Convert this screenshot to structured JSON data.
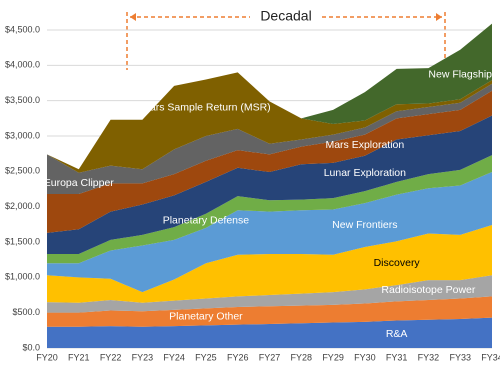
{
  "chart_data": {
    "type": "stacked_area",
    "annotation": "Decadal",
    "categories": [
      "FY20",
      "FY21",
      "FY22",
      "FY23",
      "FY24",
      "FY25",
      "FY26",
      "FY27",
      "FY28",
      "FY29",
      "FY30",
      "FY31",
      "FY32",
      "FY33",
      "FY34"
    ],
    "ylim": [
      0,
      4500
    ],
    "yticks": [
      {
        "value": 0,
        "label": "$0.0"
      },
      {
        "value": 500,
        "label": "$500.0"
      },
      {
        "value": 1000,
        "label": "$1,000.0"
      },
      {
        "value": 1500,
        "label": "$1,500.0"
      },
      {
        "value": 2000,
        "label": "$2,000.0"
      },
      {
        "value": 2500,
        "label": "$2,500.0"
      },
      {
        "value": 3000,
        "label": "$3,000.0"
      },
      {
        "value": 3500,
        "label": "$3,500.0"
      },
      {
        "value": 4000,
        "label": "$4,000.0"
      },
      {
        "value": 4500,
        "label": "$4,500.0"
      }
    ],
    "grid": true,
    "series": [
      {
        "name": "R&A",
        "color": "#4472c4",
        "values": [
          300,
          300,
          310,
          300,
          310,
          320,
          330,
          340,
          350,
          360,
          370,
          390,
          400,
          410,
          430
        ]
      },
      {
        "name": "Planetary Other",
        "color": "#ed7d31",
        "values": [
          200,
          200,
          220,
          220,
          230,
          240,
          250,
          250,
          250,
          250,
          260,
          270,
          280,
          290,
          300
        ]
      },
      {
        "name": "Radioisotope Power",
        "color": "#a5a5a5",
        "values": [
          150,
          140,
          150,
          120,
          130,
          140,
          150,
          160,
          170,
          180,
          200,
          230,
          280,
          260,
          300
        ]
      },
      {
        "name": "Discovery",
        "color": "#ffc000",
        "values": [
          380,
          360,
          300,
          150,
          300,
          500,
          590,
          580,
          560,
          530,
          600,
          620,
          660,
          640,
          710
        ]
      },
      {
        "name": "New Frontiers",
        "color": "#5b9bd5",
        "values": [
          170,
          200,
          400,
          660,
          560,
          500,
          630,
          600,
          620,
          640,
          620,
          660,
          640,
          700,
          750
        ]
      },
      {
        "name": "Planetary Defense",
        "color": "#70ad47",
        "values": [
          130,
          130,
          150,
          150,
          180,
          200,
          200,
          160,
          150,
          160,
          170,
          180,
          200,
          220,
          240
        ]
      },
      {
        "name": "Lunar Exploration",
        "color": "#264478",
        "values": [
          300,
          350,
          400,
          430,
          450,
          450,
          400,
          400,
          500,
          500,
          500,
          600,
          550,
          550,
          560
        ]
      },
      {
        "name": "Mars Exploration",
        "color": "#9e480e",
        "values": [
          550,
          500,
          400,
          300,
          300,
          300,
          250,
          250,
          250,
          300,
          300,
          300,
          300,
          300,
          350
        ]
      },
      {
        "name": "Europa Clipper",
        "color": "#636363",
        "values": [
          560,
          300,
          250,
          200,
          350,
          350,
          300,
          150,
          100,
          100,
          100,
          100,
          100,
          100,
          100
        ]
      },
      {
        "name": "Mars Sample Return (MSR)",
        "color": "#7f6000",
        "values": [
          0,
          50,
          650,
          700,
          900,
          800,
          800,
          600,
          300,
          150,
          100,
          100,
          50,
          50,
          50
        ]
      },
      {
        "name": "New Flagship",
        "color": "#43682b",
        "values": [
          0,
          0,
          0,
          0,
          0,
          0,
          0,
          0,
          0,
          200,
          400,
          500,
          500,
          700,
          800
        ]
      }
    ]
  }
}
